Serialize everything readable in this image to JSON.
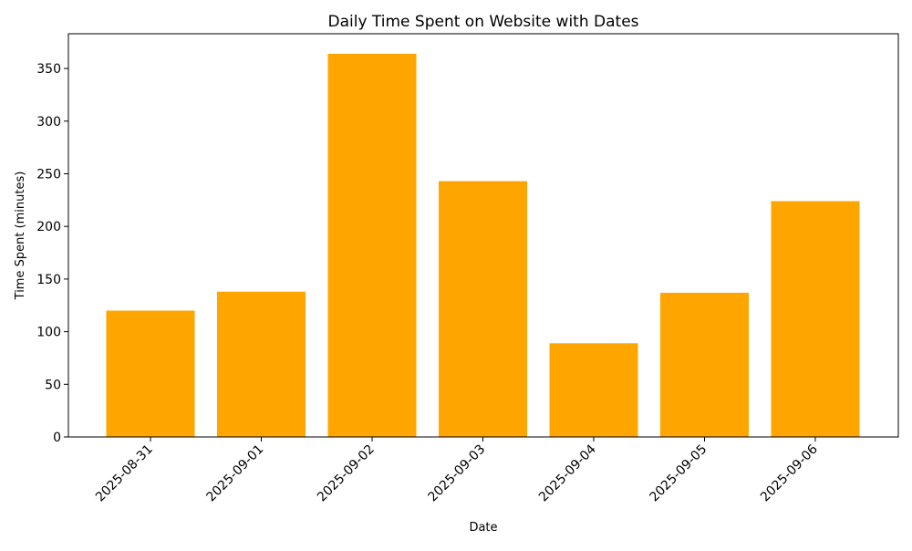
{
  "chart_data": {
    "type": "bar",
    "title": "Daily Time Spent on Website with Dates",
    "xlabel": "Date",
    "ylabel": "Time Spent (minutes)",
    "categories": [
      "2025-08-31",
      "2025-09-01",
      "2025-09-02",
      "2025-09-03",
      "2025-09-04",
      "2025-09-05",
      "2025-09-06"
    ],
    "values": [
      120,
      138,
      364,
      243,
      89,
      137,
      224
    ],
    "ylim": [
      0,
      383
    ],
    "yticks": [
      0,
      50,
      100,
      150,
      200,
      250,
      300,
      350
    ],
    "grid": false,
    "bar_color": "#ffa500",
    "axis_color": "#000000",
    "x_tick_rotation_deg": 45
  }
}
